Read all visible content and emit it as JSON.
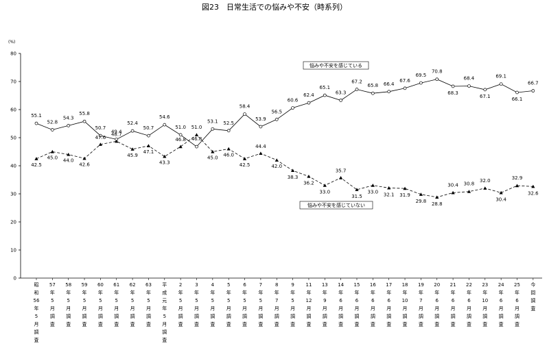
{
  "chart_data": {
    "type": "line",
    "title": "図23　日常生活での悩みや不安（時系列）",
    "ylabel": "(%)",
    "ylim": [
      0,
      80
    ],
    "yticks": [
      0,
      10,
      20,
      30,
      40,
      50,
      60,
      70,
      80
    ],
    "grid": false,
    "categories": [
      "昭和56年5月調査",
      "57年5月調査",
      "58年5月調査",
      "59年5月調査",
      "60年5月調査",
      "61年5月調査",
      "62年5月調査",
      "63年5月調査",
      "平成元年5月調査",
      "2年5月調査",
      "3年5月調査",
      "4年5月調査",
      "5年5月調査",
      "6年5月調査",
      "7年5月調査",
      "8年7月調査",
      "9年5月調査",
      "11年12月調査",
      "13年9月調査",
      "14年6月調査",
      "15年6月調査",
      "16年6月調査",
      "17年6月調査",
      "18年10月調査",
      "19年7月調査",
      "20年6月調査",
      "21年6月調査",
      "22年6月調査",
      "23年10月調査",
      "24年6月調査",
      "25年6月調査",
      "今回調査"
    ],
    "category_lines": [
      [
        "昭",
        "和",
        "56",
        "年",
        "5",
        "月",
        "調",
        "査"
      ],
      [
        "57",
        "年",
        "5",
        "月",
        "調",
        "査"
      ],
      [
        "58",
        "年",
        "5",
        "月",
        "調",
        "査"
      ],
      [
        "59",
        "年",
        "5",
        "月",
        "調",
        "査"
      ],
      [
        "60",
        "年",
        "5",
        "月",
        "調",
        "査"
      ],
      [
        "61",
        "年",
        "5",
        "月",
        "調",
        "査"
      ],
      [
        "62",
        "年",
        "5",
        "月",
        "調",
        "査"
      ],
      [
        "63",
        "年",
        "5",
        "月",
        "調",
        "査"
      ],
      [
        "平",
        "成",
        "元",
        "年",
        "5",
        "月",
        "調",
        "査"
      ],
      [
        "2",
        "年",
        "5",
        "月",
        "調",
        "査"
      ],
      [
        "3",
        "年",
        "5",
        "月",
        "調",
        "査"
      ],
      [
        "4",
        "年",
        "5",
        "月",
        "調",
        "査"
      ],
      [
        "5",
        "年",
        "5",
        "月",
        "調",
        "査"
      ],
      [
        "6",
        "年",
        "5",
        "月",
        "調",
        "査"
      ],
      [
        "7",
        "年",
        "5",
        "月",
        "調",
        "査"
      ],
      [
        "8",
        "年",
        "7",
        "月",
        "調",
        "査"
      ],
      [
        "9",
        "年",
        "5",
        "月",
        "調",
        "査"
      ],
      [
        "11",
        "年",
        "12",
        "月",
        "調",
        "査"
      ],
      [
        "13",
        "年",
        "9",
        "月",
        "調",
        "査"
      ],
      [
        "14",
        "年",
        "6",
        "月",
        "調",
        "査"
      ],
      [
        "15",
        "年",
        "6",
        "月",
        "調",
        "査"
      ],
      [
        "16",
        "年",
        "6",
        "月",
        "調",
        "査"
      ],
      [
        "17",
        "年",
        "6",
        "月",
        "調",
        "査"
      ],
      [
        "18",
        "年",
        "10",
        "月",
        "調",
        "査"
      ],
      [
        "19",
        "年",
        "7",
        "月",
        "調",
        "査"
      ],
      [
        "20",
        "年",
        "6",
        "月",
        "調",
        "査"
      ],
      [
        "21",
        "年",
        "6",
        "月",
        "調",
        "査"
      ],
      [
        "22",
        "年",
        "6",
        "月",
        "調",
        "査"
      ],
      [
        "23",
        "年",
        "10",
        "月",
        "調",
        "査"
      ],
      [
        "24",
        "年",
        "6",
        "月",
        "調",
        "査"
      ],
      [
        "25",
        "年",
        "6",
        "月",
        "調",
        "査"
      ],
      [
        "今",
        "回",
        "調",
        "査"
      ]
    ],
    "series": [
      {
        "name": "悩みや不安を感じている",
        "marker": "circle",
        "line_style": "solid",
        "values": [
          55.1,
          52.8,
          54.3,
          55.8,
          50.7,
          49.4,
          52.4,
          50.7,
          54.6,
          51.0,
          46.8,
          53.1,
          52.5,
          58.4,
          53.9,
          56.5,
          60.6,
          62.4,
          65.1,
          63.3,
          67.2,
          65.8,
          66.4,
          67.6,
          69.5,
          70.8,
          68.3,
          68.4,
          67.1,
          69.1,
          66.1,
          66.7
        ],
        "labels": [
          "55.1",
          "52.8",
          "54.3",
          "55.8",
          "50.7",
          "49.4",
          "52.4",
          "50.7",
          "54.6",
          "51.0",
          "46.8",
          "53.1",
          "52.5",
          "58.4",
          "53.9",
          "56.5",
          "60.6",
          "62.4",
          "65.1",
          "63.3",
          "67.2",
          "65.8",
          "66.4",
          "67.6",
          "69.5",
          "70.8",
          "68.3",
          "68.4",
          "67.1",
          "69.1",
          "66.1",
          "66.7"
        ]
      },
      {
        "name": "悩みや不安を感じていない",
        "marker": "triangle",
        "line_style": "dashed",
        "values": [
          42.5,
          45.0,
          44.0,
          42.6,
          47.6,
          48.7,
          45.9,
          47.1,
          43.3,
          46.8,
          51.0,
          45.0,
          46.0,
          42.5,
          44.4,
          42.0,
          38.3,
          36.2,
          33.0,
          35.7,
          31.5,
          33.0,
          32.1,
          31.9,
          29.8,
          28.8,
          30.4,
          30.8,
          32.0,
          30.4,
          32.9,
          32.6
        ],
        "labels": [
          "42.5",
          "45.0",
          "44.0",
          "42.6",
          "47.6",
          "48.7",
          "45.9",
          "47.1",
          "43.3",
          "46.8",
          "51.0",
          "45.0",
          "46.0",
          "42.5",
          "44.4",
          "42.0",
          "38.3",
          "36.2",
          "33.0",
          "35.7",
          "31.5",
          "33.0",
          "32.1",
          "31.9",
          "29.8",
          "28.8",
          "30.4",
          "30.8",
          "32.0",
          "30.4",
          "32.9",
          "32.6"
        ]
      }
    ]
  }
}
